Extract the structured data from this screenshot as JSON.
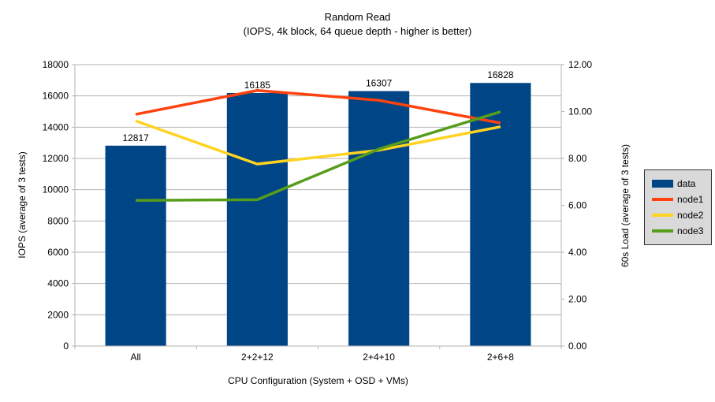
{
  "chart_data": {
    "type": "bar+line combo",
    "title": "Random Read",
    "subtitle": "(IOPS, 4k block, 64 queue depth - higher is better)",
    "xlabel": "CPU Configuration (System + OSD + VMs)",
    "ylabel_left": "IOPS (average of 3 tests)",
    "ylabel_right": "60s Load (average of 3 tests)",
    "categories": [
      "All",
      "2+2+12",
      "2+4+10",
      "2+6+8"
    ],
    "series": [
      {
        "name": "data",
        "type": "bar",
        "axis": "left",
        "color": "#004586",
        "values": [
          12817,
          16185,
          16307,
          16828
        ],
        "data_labels": [
          "12817",
          "16185",
          "16307",
          "16828"
        ]
      },
      {
        "name": "node1",
        "type": "line",
        "axis": "right",
        "color": "#FF420E",
        "values": [
          9.88,
          10.9,
          10.48,
          9.51
        ]
      },
      {
        "name": "node2",
        "type": "line",
        "axis": "right",
        "color": "#FFD320",
        "values": [
          9.6,
          7.76,
          8.35,
          9.35
        ]
      },
      {
        "name": "node3",
        "type": "line",
        "axis": "right",
        "color": "#579D1C",
        "values": [
          6.21,
          6.24,
          8.4,
          9.99
        ]
      }
    ],
    "axis_left": {
      "min": 0,
      "max": 18000,
      "step": 2000,
      "tick_labels": [
        "0",
        "2000",
        "4000",
        "6000",
        "8000",
        "10000",
        "12000",
        "14000",
        "16000",
        "18000"
      ]
    },
    "axis_right": {
      "min": 0,
      "max": 12,
      "step": 2,
      "tick_labels": [
        "0.00",
        "2.00",
        "4.00",
        "6.00",
        "8.00",
        "10.00",
        "12.00"
      ]
    },
    "grid": true,
    "grid_color": "#B3B3B3",
    "axis_color": "#B3B3B3",
    "text_color": "#000000",
    "legend_position": "right",
    "legend_bg": "#D9D9D9",
    "legend_border": "#333333"
  }
}
